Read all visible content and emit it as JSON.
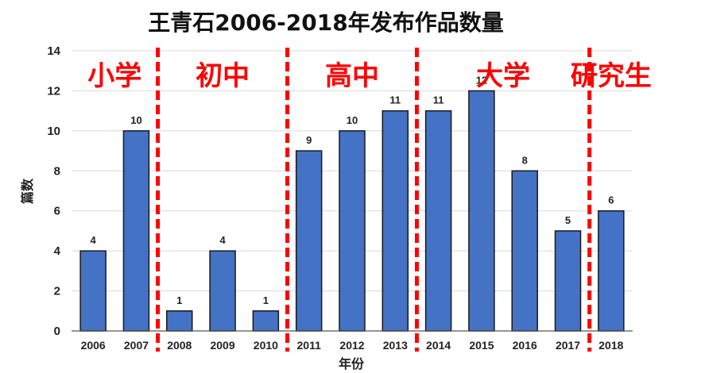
{
  "chart_data": {
    "type": "bar",
    "title": "王青石2006-2018年发布作品数量",
    "xlabel": "年份",
    "ylabel": "篇数",
    "categories": [
      "2006",
      "2007",
      "2008",
      "2009",
      "2010",
      "2011",
      "2012",
      "2013",
      "2014",
      "2015",
      "2016",
      "2017",
      "2018"
    ],
    "values": [
      4,
      10,
      1,
      4,
      1,
      9,
      10,
      11,
      11,
      12,
      8,
      5,
      6
    ],
    "ylim": [
      0,
      14
    ],
    "yticks": [
      0,
      2,
      4,
      6,
      8,
      10,
      12,
      14
    ],
    "grid": true,
    "legend": "none",
    "bar_color": "#4472C4",
    "bar_edge_color": "#1a1a1a",
    "divider_color": "#FF0000",
    "annotation_color": "#FF0000",
    "dividers_between": [
      [
        "2007",
        "2008"
      ],
      [
        "2010",
        "2011"
      ],
      [
        "2013",
        "2014"
      ],
      [
        "2017",
        "2018"
      ]
    ],
    "periods": [
      {
        "label": "小学",
        "from": "2006",
        "to": "2007"
      },
      {
        "label": "初中",
        "from": "2008",
        "to": "2010"
      },
      {
        "label": "高中",
        "from": "2011",
        "to": "2013"
      },
      {
        "label": "大学",
        "from": "2014",
        "to": "2017"
      },
      {
        "label": "研究生",
        "from": "2018",
        "to": "2018"
      }
    ]
  }
}
